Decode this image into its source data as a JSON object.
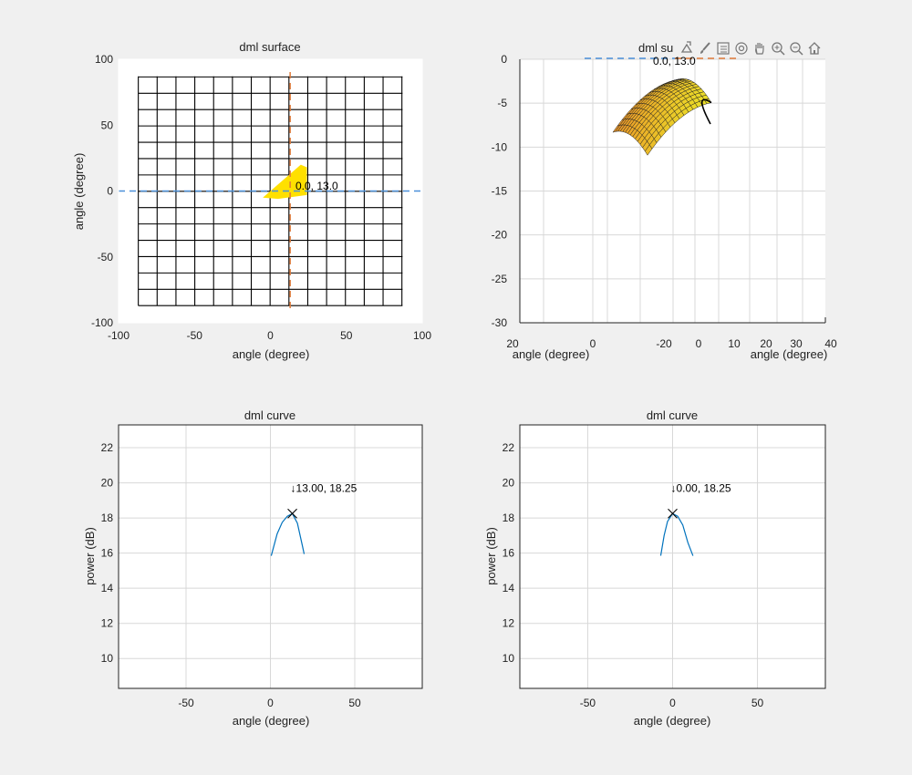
{
  "toolbar": {
    "icons": [
      "export-icon",
      "brush-icon",
      "legend-icon",
      "rotate-3d-icon",
      "pan-icon",
      "zoom-in-icon",
      "zoom-out-icon",
      "home-icon"
    ]
  },
  "colors": {
    "grid_line": "#000000",
    "dashed_h": "#4a90d9",
    "dashed_v": "#e07b3a",
    "surface_fill": "#ffe000",
    "curve": "#0072bd",
    "panel_grid": "#d8d8d8"
  },
  "chart_data": [
    {
      "type": "heatmap",
      "title": "dml surface",
      "xlabel": "angle (degree)",
      "ylabel": "angle (degree)",
      "xlim": [
        -100,
        100
      ],
      "ylim": [
        -100,
        100
      ],
      "xticks": [
        -100,
        -50,
        0,
        50,
        100
      ],
      "yticks": [
        -100,
        -50,
        0,
        50,
        100
      ],
      "mesh_range": [
        -87,
        87
      ],
      "mesh_step": 12.4,
      "crosshair": {
        "x": 13,
        "y": 0
      },
      "annotation": "0.0, 13.0",
      "grid": false
    },
    {
      "type": "area",
      "title": "dml su",
      "annotation": "0.0, 13.0",
      "xlabel_left": "angle (degree)",
      "xlabel_right": "angle (degree)",
      "ylim": [
        -30,
        0
      ],
      "yticks": [
        0,
        -5,
        -10,
        -15,
        -20,
        -25,
        -30
      ],
      "xticks_left": [
        "20",
        "0",
        "-20"
      ],
      "xticks_right": [
        "0",
        "10",
        "20",
        "30",
        "40"
      ],
      "grid": true
    },
    {
      "type": "line",
      "title": "dml curve",
      "xlabel": "angle (degree)",
      "ylabel": "power (dB)",
      "xlim": [
        -90,
        90
      ],
      "ylim": [
        8.3,
        23.3
      ],
      "xticks": [
        -50,
        0,
        50
      ],
      "yticks": [
        10,
        12,
        14,
        16,
        18,
        20,
        22
      ],
      "x": [
        0.5,
        4,
        7,
        10,
        13,
        16,
        19,
        20
      ],
      "y": [
        15.85,
        17.1,
        17.75,
        18.1,
        18.25,
        17.7,
        16.4,
        15.95
      ],
      "peak": {
        "x": 13.0,
        "y": 18.25
      },
      "annotation": "↓13.00, 18.25",
      "grid": true
    },
    {
      "type": "line",
      "title": "dml curve",
      "xlabel": "angle (degree)",
      "ylabel": "power (dB)",
      "xlim": [
        -90,
        90
      ],
      "ylim": [
        8.3,
        23.3
      ],
      "xticks": [
        -50,
        0,
        50
      ],
      "yticks": [
        10,
        12,
        14,
        16,
        18,
        20,
        22
      ],
      "x": [
        -7,
        -5,
        -3,
        0,
        3,
        6,
        9,
        12
      ],
      "y": [
        15.85,
        17.0,
        17.8,
        18.25,
        18.1,
        17.6,
        16.6,
        15.85
      ],
      "peak": {
        "x": 0.0,
        "y": 18.25
      },
      "annotation": "↓0.00, 18.25",
      "grid": true
    }
  ]
}
